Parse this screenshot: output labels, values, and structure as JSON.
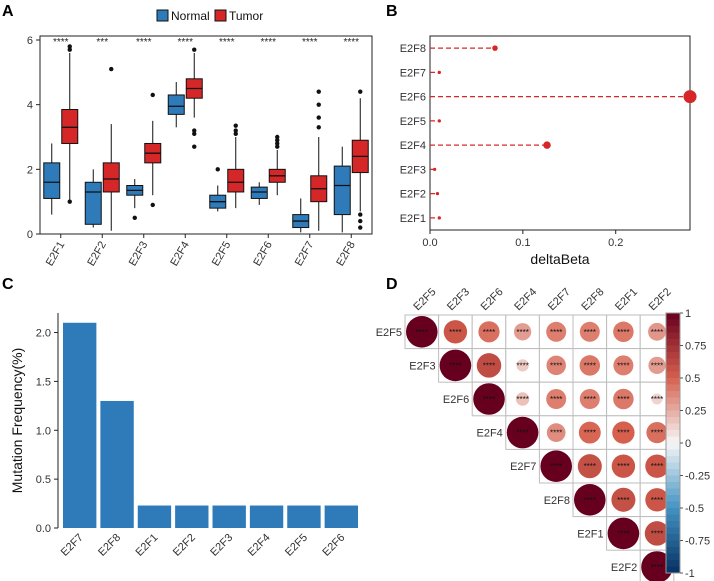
{
  "chart_data": [
    {
      "panel": "A",
      "type": "box",
      "title": "",
      "legend": {
        "position": "top",
        "entries": [
          {
            "name": "Normal",
            "color": "#2f7ab9"
          },
          {
            "name": "Tumor",
            "color": "#d62728"
          }
        ]
      },
      "ylim": [
        0,
        6
      ],
      "yticks": [
        "0",
        "2",
        "4",
        "6"
      ],
      "categories": [
        "E2F1",
        "E2F2",
        "E2F3",
        "E2F4",
        "E2F5",
        "E2F6",
        "E2F7",
        "E2F8"
      ],
      "significance": [
        "****",
        "***",
        "****",
        "****",
        "****",
        "****",
        "****",
        "****"
      ],
      "series": [
        {
          "name": "Normal",
          "boxes": [
            {
              "min": 0.6,
              "q1": 1.1,
              "median": 1.6,
              "q3": 2.2,
              "max": 2.8,
              "outliers": []
            },
            {
              "min": 0.2,
              "q1": 0.3,
              "median": 1.3,
              "q3": 1.6,
              "max": 2.0,
              "outliers": []
            },
            {
              "min": 0.8,
              "q1": 1.2,
              "median": 1.35,
              "q3": 1.5,
              "max": 1.7,
              "outliers": [
                0.5
              ]
            },
            {
              "min": 3.3,
              "q1": 3.7,
              "median": 3.95,
              "q3": 4.3,
              "max": 4.7,
              "outliers": []
            },
            {
              "min": 0.7,
              "q1": 0.8,
              "median": 1.0,
              "q3": 1.2,
              "max": 1.5,
              "outliers": [
                2.0
              ]
            },
            {
              "min": 0.9,
              "q1": 1.1,
              "median": 1.3,
              "q3": 1.45,
              "max": 1.6,
              "outliers": []
            },
            {
              "min": 0.05,
              "q1": 0.2,
              "median": 0.4,
              "q3": 0.6,
              "max": 1.1,
              "outliers": []
            },
            {
              "min": 0.05,
              "q1": 0.6,
              "median": 1.5,
              "q3": 2.1,
              "max": 2.7,
              "outliers": []
            }
          ]
        },
        {
          "name": "Tumor",
          "boxes": [
            {
              "min": 1.0,
              "q1": 2.8,
              "median": 3.3,
              "q3": 3.85,
              "max": 5.6,
              "outliers": [
                5.7,
                5.8,
                1.0
              ]
            },
            {
              "min": 0.1,
              "q1": 1.3,
              "median": 1.7,
              "q3": 2.2,
              "max": 3.4,
              "outliers": [
                5.1
              ]
            },
            {
              "min": 1.2,
              "q1": 2.2,
              "median": 2.5,
              "q3": 2.8,
              "max": 3.5,
              "outliers": [
                4.3,
                0.9
              ]
            },
            {
              "min": 3.6,
              "q1": 4.2,
              "median": 4.5,
              "q3": 4.8,
              "max": 5.6,
              "outliers": [
                5.7,
                3.2,
                3.1,
                2.7
              ]
            },
            {
              "min": 0.8,
              "q1": 1.3,
              "median": 1.6,
              "q3": 2.0,
              "max": 3.0,
              "outliers": [
                3.1,
                3.2,
                3.35
              ]
            },
            {
              "min": 1.2,
              "q1": 1.6,
              "median": 1.8,
              "q3": 2.0,
              "max": 2.6,
              "outliers": [
                2.7,
                2.8,
                2.9,
                3.0
              ]
            },
            {
              "min": 0.1,
              "q1": 1.0,
              "median": 1.4,
              "q3": 1.8,
              "max": 3.0,
              "outliers": [
                3.3,
                3.6,
                4.0,
                4.4
              ]
            },
            {
              "min": 0.7,
              "q1": 1.9,
              "median": 2.4,
              "q3": 2.9,
              "max": 4.2,
              "outliers": [
                4.4,
                0.6,
                0.4,
                0.2
              ]
            }
          ]
        }
      ]
    },
    {
      "panel": "B",
      "type": "lollipop",
      "xlabel": "deltaBeta",
      "xlim": [
        0,
        0.28
      ],
      "xticks": [
        "0.0",
        "0.1",
        "0.2"
      ],
      "xtick_values": [
        0,
        0.1,
        0.2
      ],
      "color": "#d62728",
      "categories": [
        "E2F8",
        "E2F7",
        "E2F6",
        "E2F5",
        "E2F4",
        "E2F3",
        "E2F2",
        "E2F1"
      ],
      "values": [
        0.07,
        0.01,
        0.28,
        0.01,
        0.126,
        0.005,
        0.008,
        0.01
      ]
    },
    {
      "panel": "C",
      "type": "bar",
      "ylabel": "Mutation Frequency(%)",
      "ylim": [
        0,
        2.2
      ],
      "yticks": [
        "0.0",
        "0.5",
        "1.0",
        "1.5",
        "2.0"
      ],
      "color": "#2f7ab9",
      "categories": [
        "E2F7",
        "E2F8",
        "E2F1",
        "E2F2",
        "E2F3",
        "E2F4",
        "E2F5",
        "E2F6"
      ],
      "values": [
        2.1,
        1.3,
        0.23,
        0.23,
        0.23,
        0.23,
        0.23,
        0.23
      ]
    },
    {
      "panel": "D",
      "type": "heatmap",
      "subtype": "correlation-upper-triangle",
      "labels": [
        "E2F5",
        "E2F3",
        "E2F6",
        "E2F4",
        "E2F7",
        "E2F8",
        "E2F1",
        "E2F2"
      ],
      "cell_label": "****",
      "colorbar": {
        "ticks": [
          "1",
          "0.75",
          "0.5",
          "0.25",
          "0",
          "-0.25",
          "-0.5",
          "-0.75",
          "-1"
        ],
        "tick_values": [
          1,
          0.75,
          0.5,
          0.25,
          0,
          -0.25,
          -0.5,
          -0.75,
          -1
        ]
      },
      "matrix": [
        [
          1.0,
          0.55,
          0.45,
          0.3,
          0.4,
          0.4,
          0.42,
          0.32
        ],
        [
          0.55,
          1.0,
          0.6,
          0.15,
          0.38,
          0.42,
          0.4,
          0.3
        ],
        [
          0.45,
          0.6,
          1.0,
          0.18,
          0.4,
          0.4,
          0.42,
          0.12
        ],
        [
          0.3,
          0.15,
          0.18,
          1.0,
          0.35,
          0.48,
          0.5,
          0.45
        ],
        [
          0.4,
          0.38,
          0.4,
          0.35,
          1.0,
          0.58,
          0.55,
          0.55
        ],
        [
          0.4,
          0.42,
          0.4,
          0.48,
          0.58,
          1.0,
          0.58,
          0.55
        ],
        [
          0.42,
          0.4,
          0.42,
          0.5,
          0.55,
          0.58,
          1.0,
          0.6
        ],
        [
          0.32,
          0.3,
          0.12,
          0.45,
          0.55,
          0.55,
          0.6,
          1.0
        ]
      ]
    }
  ],
  "panel_labels": [
    "A",
    "B",
    "C",
    "D"
  ]
}
